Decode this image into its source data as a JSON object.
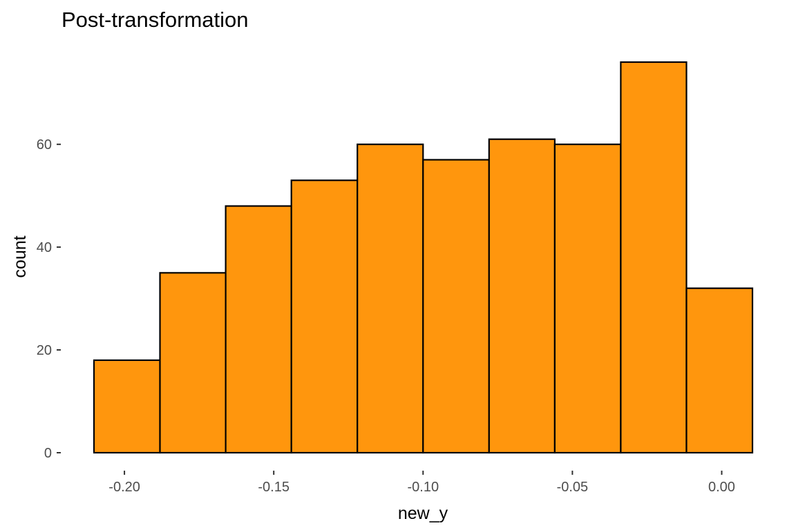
{
  "chart_data": {
    "type": "bar",
    "title": "Post-transformation",
    "xlabel": "new_y",
    "ylabel": "count",
    "bins": [
      {
        "x0": -0.2102,
        "x1": -0.1881,
        "count": 18
      },
      {
        "x0": -0.1881,
        "x1": -0.1661,
        "count": 35
      },
      {
        "x0": -0.1661,
        "x1": -0.1441,
        "count": 48
      },
      {
        "x0": -0.1441,
        "x1": -0.122,
        "count": 53
      },
      {
        "x0": -0.122,
        "x1": -0.1,
        "count": 60
      },
      {
        "x0": -0.1,
        "x1": -0.0779,
        "count": 57
      },
      {
        "x0": -0.0779,
        "x1": -0.0559,
        "count": 61
      },
      {
        "x0": -0.0559,
        "x1": -0.0338,
        "count": 60
      },
      {
        "x0": -0.0338,
        "x1": -0.0118,
        "count": 76
      },
      {
        "x0": -0.0118,
        "x1": 0.0103,
        "count": 32
      }
    ],
    "xlim": [
      -0.2102,
      0.0103
    ],
    "ylim": [
      0,
      76
    ],
    "x_ticks": [
      {
        "value": -0.2,
        "label": "-0.20"
      },
      {
        "value": -0.15,
        "label": "-0.15"
      },
      {
        "value": -0.1,
        "label": "-0.10"
      },
      {
        "value": -0.05,
        "label": "-0.05"
      },
      {
        "value": 0.0,
        "label": "0.00"
      }
    ],
    "y_ticks": [
      {
        "value": 0,
        "label": "0"
      },
      {
        "value": 20,
        "label": "20"
      },
      {
        "value": 40,
        "label": "40"
      },
      {
        "value": 60,
        "label": "60"
      }
    ],
    "grid": false,
    "legend": "none",
    "colors": {
      "bar_fill": "#FF960D",
      "bar_outline": "#000000",
      "tick_text": "#4D4D4D",
      "background": "#FFFFFF"
    }
  }
}
